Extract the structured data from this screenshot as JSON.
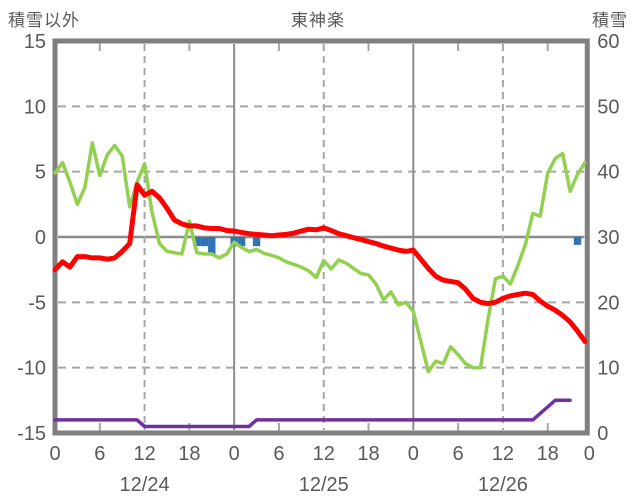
{
  "titles": {
    "left": "積雪以外",
    "center": "東神楽",
    "right": "積雪"
  },
  "chart_data": {
    "type": "line+bar",
    "station": "東神楽",
    "left_axis": {
      "label": "積雪以外",
      "range": [
        -15,
        15
      ],
      "ticks": [
        15,
        10,
        5,
        0,
        -5,
        -10,
        -15
      ]
    },
    "right_axis": {
      "label": "積雪",
      "range": [
        0,
        60
      ],
      "ticks": [
        60,
        50,
        40,
        30,
        20,
        10,
        0
      ]
    },
    "x_axis": {
      "days": [
        "12/24",
        "12/25",
        "12/26"
      ],
      "hour_ticks": [
        0,
        6,
        12,
        18
      ],
      "end_label": "0",
      "hours_total": 72
    },
    "grid": {
      "h_dashed_at": [
        10,
        5,
        -5,
        -10
      ],
      "h_solid_at": [
        0
      ],
      "v_dashed_at_hours": [
        12,
        36,
        60
      ],
      "v_solid_at_hours": [
        24,
        48
      ]
    },
    "colors": {
      "red": "#ff0000",
      "green": "#92d050",
      "purple": "#7030a0",
      "blue": "#2e75b6",
      "frame": "#7f7f7f",
      "grid": "#a6a6a6",
      "text": "#595959"
    },
    "series": [
      {
        "name": "red-line",
        "axis": "left",
        "color": "#ff0000",
        "values": [
          -2.5,
          -1.9,
          -2.3,
          -1.5,
          -1.5,
          -1.6,
          -1.6,
          -1.7,
          -1.6,
          -1.1,
          -0.5,
          4.0,
          3.2,
          3.5,
          3.0,
          2.2,
          1.3,
          1.0,
          0.85,
          0.85,
          0.7,
          0.65,
          0.65,
          0.5,
          0.45,
          0.35,
          0.25,
          0.2,
          0.15,
          0.1,
          0.15,
          0.2,
          0.3,
          0.45,
          0.6,
          0.55,
          0.7,
          0.5,
          0.25,
          0.1,
          -0.05,
          -0.2,
          -0.35,
          -0.5,
          -0.7,
          -0.85,
          -1.0,
          -1.1,
          -1.0,
          -1.7,
          -2.4,
          -3.0,
          -3.3,
          -3.4,
          -3.5,
          -4.0,
          -4.7,
          -5.0,
          -5.1,
          -5.0,
          -4.7,
          -4.5,
          -4.4,
          -4.3,
          -4.4,
          -4.9,
          -5.3,
          -5.6,
          -6.0,
          -6.5,
          -7.2,
          -8.0
        ]
      },
      {
        "name": "green-line",
        "axis": "left",
        "color": "#92d050",
        "values": [
          4.9,
          5.7,
          4.2,
          2.5,
          3.8,
          7.2,
          4.7,
          6.3,
          7.0,
          6.2,
          2.3,
          4.2,
          5.6,
          1.9,
          -0.5,
          -1.1,
          -1.2,
          -1.3,
          1.2,
          -1.2,
          -1.3,
          -1.3,
          -1.6,
          -1.3,
          -0.4,
          -0.8,
          -1.1,
          -0.95,
          -1.25,
          -1.4,
          -1.6,
          -1.9,
          -2.1,
          -2.3,
          -2.6,
          -3.1,
          -1.8,
          -2.45,
          -1.75,
          -2.0,
          -2.4,
          -2.8,
          -2.9,
          -3.6,
          -4.8,
          -4.2,
          -5.2,
          -5.0,
          -5.7,
          -8.0,
          -10.3,
          -9.5,
          -9.7,
          -8.4,
          -9.0,
          -9.7,
          -10.0,
          -10.0,
          -6.3,
          -3.2,
          -3.0,
          -3.6,
          -2.2,
          -0.6,
          1.8,
          1.6,
          4.9,
          6.0,
          6.4,
          3.5,
          4.8,
          5.7
        ]
      },
      {
        "name": "purple-line",
        "axis": "right",
        "color": "#7030a0",
        "values": [
          2,
          2,
          2,
          2,
          2,
          2,
          2,
          2,
          2,
          2,
          2,
          2,
          1,
          1,
          1,
          1,
          1,
          1,
          1,
          1,
          1,
          1,
          1,
          1,
          1,
          1,
          1,
          2,
          2,
          2,
          2,
          2,
          2,
          2,
          2,
          2,
          2,
          2,
          2,
          2,
          2,
          2,
          2,
          2,
          2,
          2,
          2,
          2,
          2,
          2,
          2,
          2,
          2,
          2,
          2,
          2,
          2,
          2,
          2,
          2,
          2,
          2,
          2,
          2,
          2,
          3,
          4,
          5,
          5,
          5
        ]
      },
      {
        "name": "blue-bars",
        "axis": "left",
        "color": "#2e75b6",
        "bars": [
          {
            "hour": 19,
            "value": -0.7
          },
          {
            "hour": 20,
            "value": -0.7
          },
          {
            "hour": 21,
            "value": -1.3
          },
          {
            "hour": 24,
            "value": -0.7
          },
          {
            "hour": 25,
            "value": -0.7
          },
          {
            "hour": 27,
            "value": -0.7
          },
          {
            "hour": 70,
            "value": -0.6
          }
        ]
      }
    ]
  }
}
